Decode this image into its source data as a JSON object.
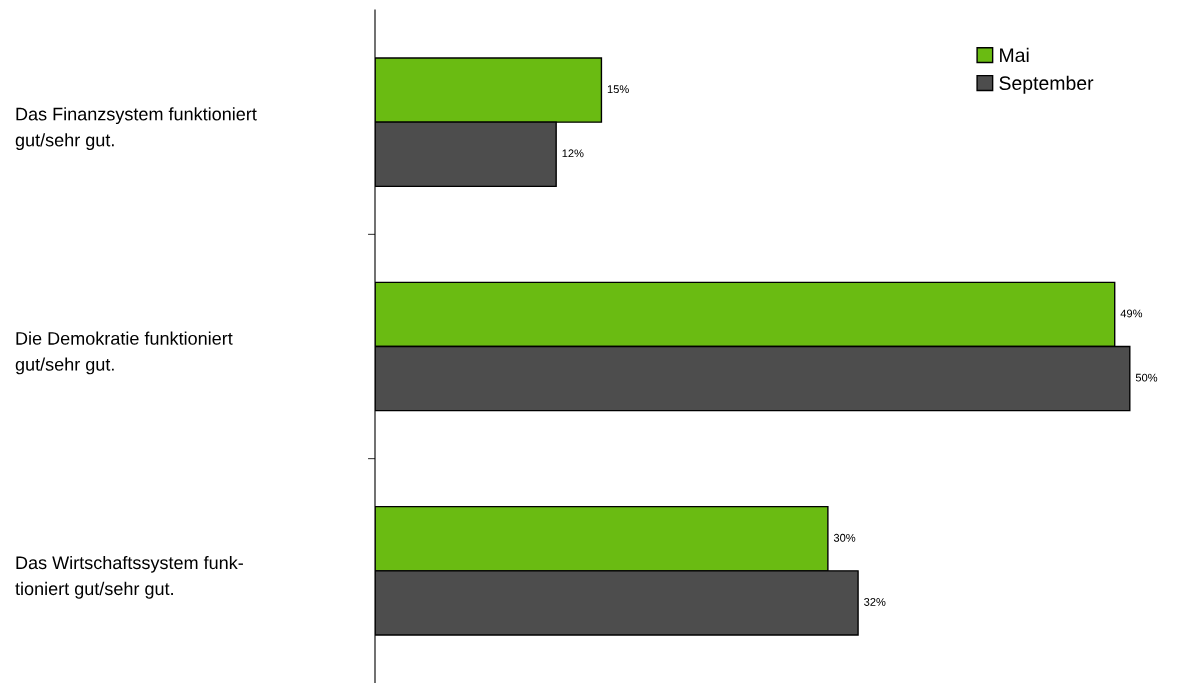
{
  "chart_data": {
    "type": "bar",
    "orientation": "horizontal",
    "categories": [
      "Das Finanzsystem funktioniert\ngut/sehr gut.",
      "Die Demokratie funktioniert\ngut/sehr gut.",
      "Das Wirtschaftssystem funk-\ntioniert gut/sehr gut."
    ],
    "series": [
      {
        "name": "Mai",
        "color": "#6abb12",
        "values": [
          15,
          49,
          30
        ],
        "value_labels": [
          "15%",
          "49%",
          "30%"
        ]
      },
      {
        "name": "September",
        "color": "#4d4d4d",
        "values": [
          12,
          50,
          32
        ],
        "value_labels": [
          "12%",
          "50%",
          "32%"
        ]
      }
    ],
    "legend": "top right",
    "grid": false
  }
}
